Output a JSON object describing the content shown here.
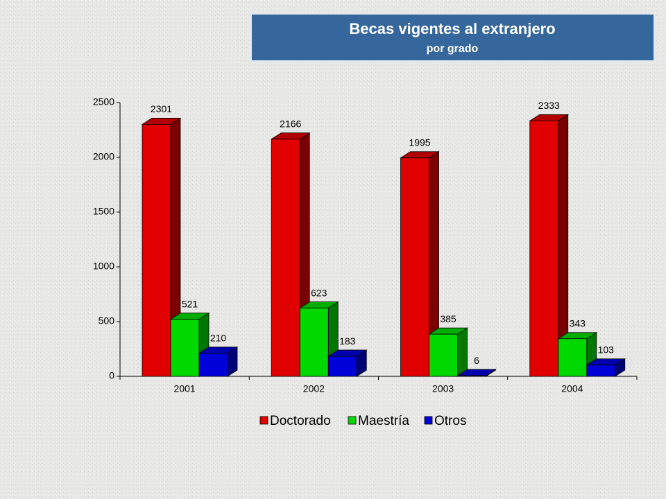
{
  "chart_data": {
    "type": "bar3d",
    "title": "Becas vigentes al extranjero",
    "subtitle": "por grado",
    "categories": [
      "2001",
      "2002",
      "2003",
      "2004"
    ],
    "series": [
      {
        "name": "Doctorado",
        "color": "#e00000",
        "values": [
          2301,
          2166,
          1995,
          2333
        ]
      },
      {
        "name": "Maestría",
        "color": "#00d800",
        "values": [
          521,
          623,
          385,
          343
        ]
      },
      {
        "name": "Otros",
        "color": "#0000d8",
        "values": [
          210,
          183,
          6,
          103
        ]
      }
    ],
    "ylim": [
      0,
      2500
    ],
    "yticks": [
      0,
      500,
      1000,
      1500,
      2000,
      2500
    ],
    "legend": "bottom"
  }
}
